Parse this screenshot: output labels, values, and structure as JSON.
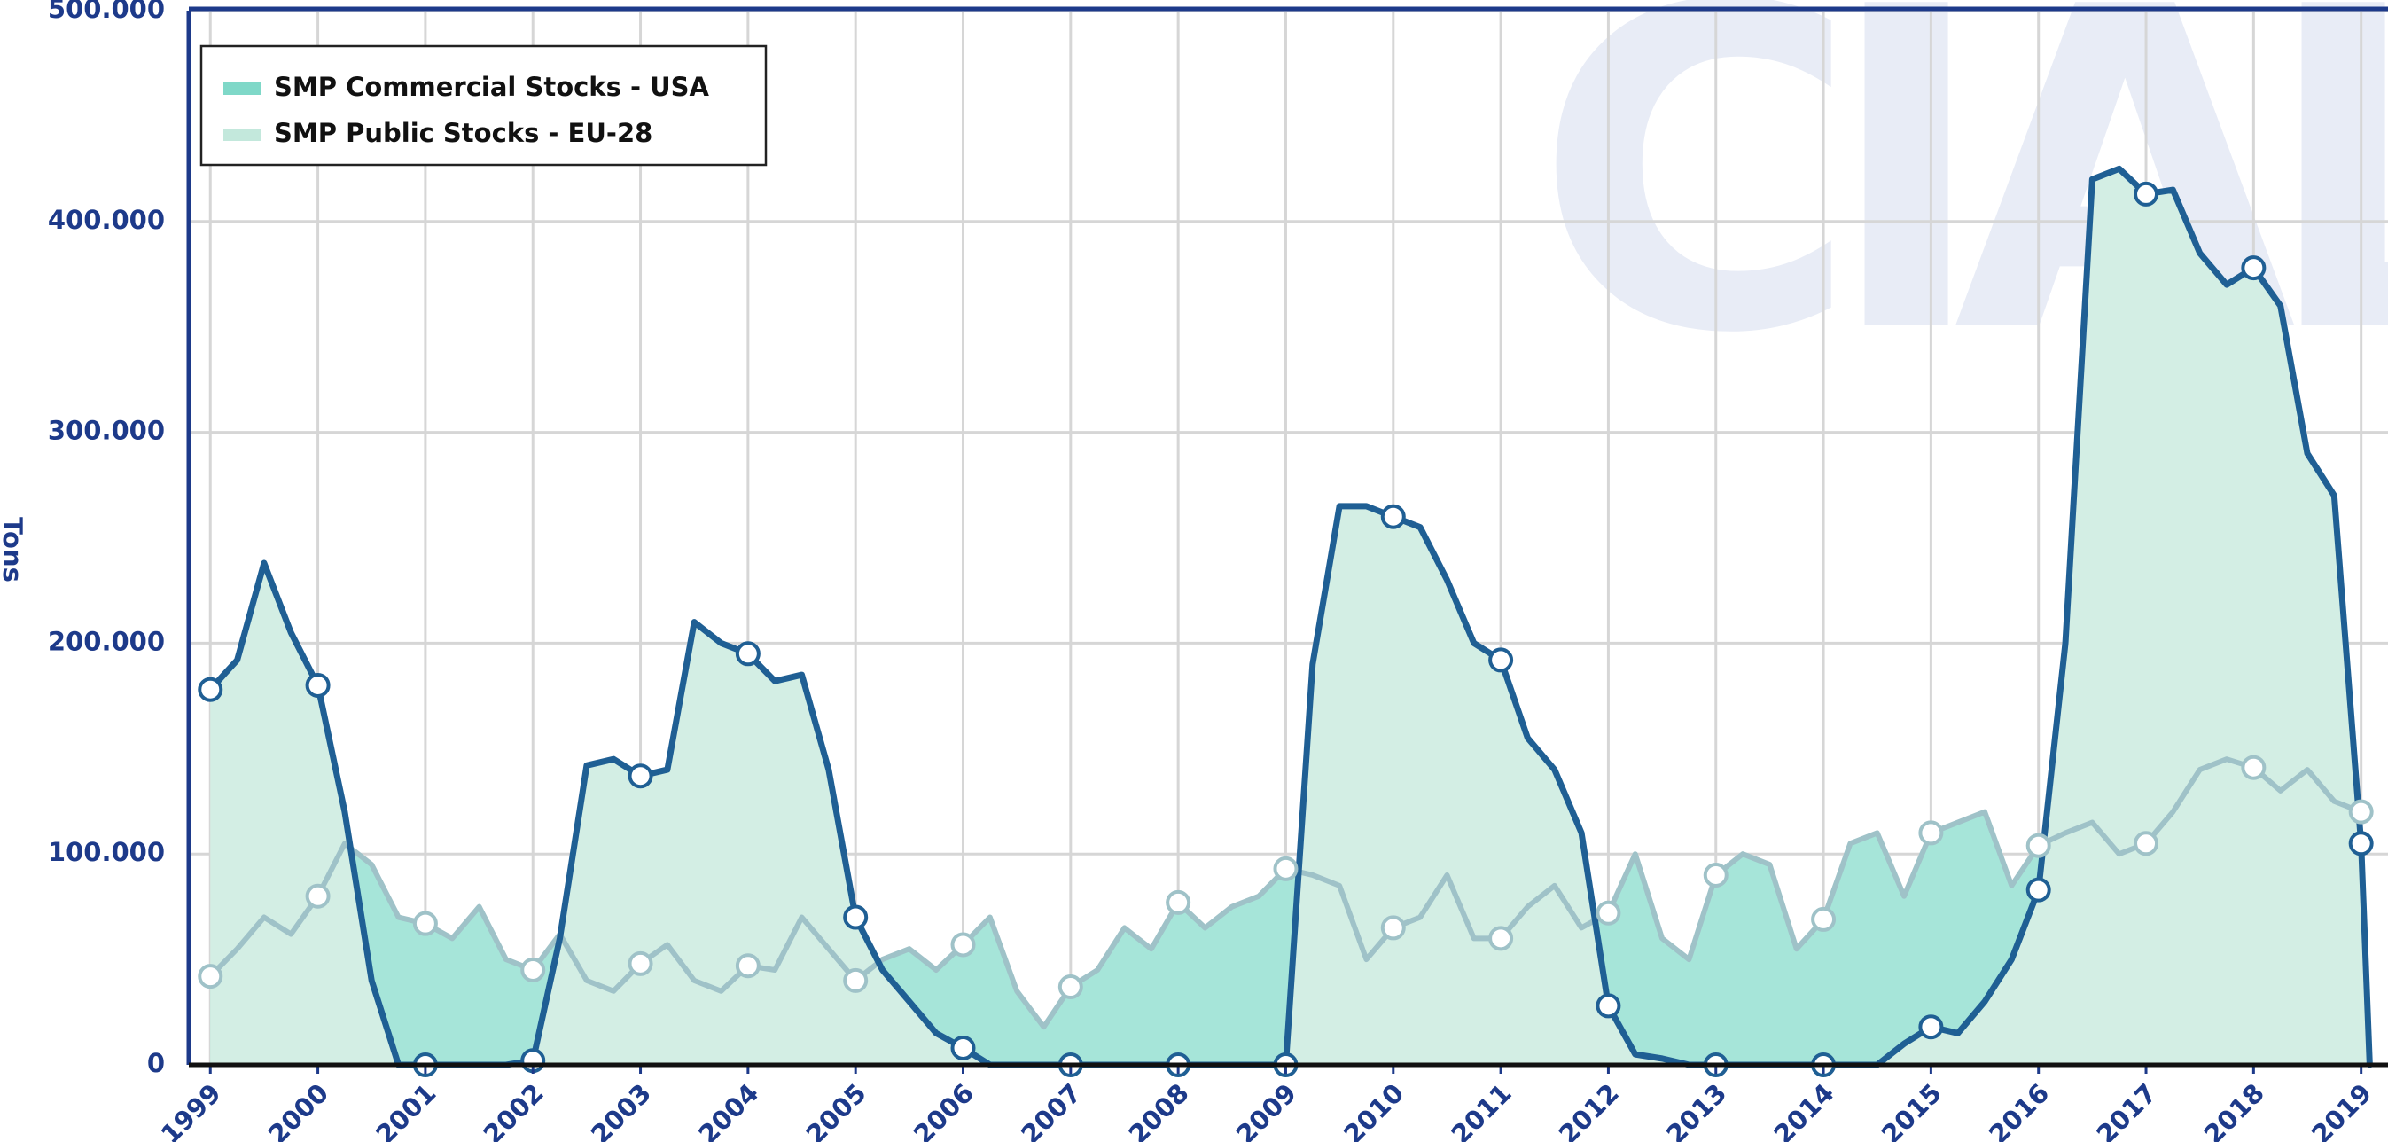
{
  "chart_data": {
    "type": "area",
    "watermark": "CIAL",
    "y_label": "Tons",
    "legend": "top-left",
    "grid": true,
    "xlim": [
      1998.8,
      2019.25
    ],
    "ylim": [
      0,
      500000
    ],
    "xticks": [
      1999,
      2000,
      2001,
      2002,
      2003,
      2004,
      2005,
      2006,
      2007,
      2008,
      2009,
      2010,
      2011,
      2012,
      2013,
      2014,
      2015,
      2016,
      2017,
      2018,
      2019
    ],
    "yticks": [
      {
        "value": 0,
        "label": "0"
      },
      {
        "value": 100000,
        "label": "100.000"
      },
      {
        "value": 200000,
        "label": "200.000"
      },
      {
        "value": 300000,
        "label": "300.000"
      },
      {
        "value": 400000,
        "label": "400.000"
      },
      {
        "value": 500000,
        "label": "500.000"
      }
    ],
    "series": [
      {
        "name": "SMP Commercial Stocks - USA",
        "color": "#7fd8c8",
        "fill": "#a6e5d9",
        "line_color": "#9fc2c8",
        "x": [
          1999,
          1999.25,
          1999.5,
          1999.75,
          2000,
          2000.25,
          2000.5,
          2000.75,
          2001,
          2001.25,
          2001.5,
          2001.75,
          2002,
          2002.25,
          2002.5,
          2002.75,
          2003,
          2003.25,
          2003.5,
          2003.75,
          2004,
          2004.25,
          2004.5,
          2004.75,
          2005,
          2005.25,
          2005.5,
          2005.75,
          2006,
          2006.25,
          2006.5,
          2006.75,
          2007,
          2007.25,
          2007.5,
          2007.75,
          2008,
          2008.25,
          2008.5,
          2008.75,
          2009,
          2009.25,
          2009.5,
          2009.75,
          2010,
          2010.25,
          2010.5,
          2010.75,
          2011,
          2011.25,
          2011.5,
          2011.75,
          2012,
          2012.25,
          2012.5,
          2012.75,
          2013,
          2013.25,
          2013.5,
          2013.75,
          2014,
          2014.25,
          2014.5,
          2014.75,
          2015,
          2015.25,
          2015.5,
          2015.75,
          2016,
          2016.25,
          2016.5,
          2016.75,
          2017,
          2017.25,
          2017.5,
          2017.75,
          2018,
          2018.25,
          2018.5,
          2018.75,
          2019
        ],
        "values": [
          42000,
          55000,
          70000,
          62000,
          80000,
          105000,
          95000,
          70000,
          67000,
          60000,
          75000,
          50000,
          45000,
          62000,
          40000,
          35000,
          48000,
          57000,
          40000,
          35000,
          47000,
          45000,
          70000,
          55000,
          40000,
          50000,
          55000,
          45000,
          57000,
          70000,
          35000,
          18000,
          37000,
          45000,
          65000,
          55000,
          77000,
          65000,
          75000,
          80000,
          93000,
          90000,
          85000,
          50000,
          65000,
          70000,
          90000,
          60000,
          60000,
          75000,
          85000,
          65000,
          72000,
          100000,
          60000,
          50000,
          90000,
          100000,
          95000,
          55000,
          69000,
          105000,
          110000,
          80000,
          110000,
          115000,
          120000,
          85000,
          104000,
          110000,
          115000,
          100000,
          105000,
          120000,
          140000,
          145000,
          141000,
          130000,
          140000,
          125000,
          120000
        ]
      },
      {
        "name": "SMP Public Stocks - EU-28",
        "color": "#c3e8dc",
        "fill": "#d3eee4",
        "line_color": "#1f5f94",
        "x": [
          1999,
          1999.25,
          1999.5,
          1999.75,
          2000,
          2000.25,
          2000.5,
          2000.75,
          2001,
          2001.25,
          2001.5,
          2001.75,
          2002,
          2002.25,
          2002.5,
          2002.75,
          2003,
          2003.25,
          2003.5,
          2003.75,
          2004,
          2004.25,
          2004.5,
          2004.75,
          2005,
          2005.25,
          2005.5,
          2005.75,
          2006,
          2006.25,
          2006.5,
          2006.75,
          2007,
          2007.25,
          2007.5,
          2007.75,
          2008,
          2008.25,
          2008.5,
          2008.75,
          2009,
          2009.25,
          2009.5,
          2009.75,
          2010,
          2010.25,
          2010.5,
          2010.75,
          2011,
          2011.25,
          2011.5,
          2011.75,
          2012,
          2012.25,
          2012.5,
          2012.75,
          2013,
          2013.25,
          2013.5,
          2013.75,
          2014,
          2014.25,
          2014.5,
          2014.75,
          2015,
          2015.25,
          2015.5,
          2015.75,
          2016,
          2016.25,
          2016.5,
          2016.75,
          2017,
          2017.25,
          2017.5,
          2017.75,
          2018,
          2018.25,
          2018.5,
          2018.75,
          2019,
          2019.08
        ],
        "values": [
          178000,
          192000,
          238000,
          205000,
          180000,
          120000,
          40000,
          0,
          0,
          0,
          0,
          0,
          2000,
          60000,
          142000,
          145000,
          137000,
          140000,
          210000,
          200000,
          195000,
          182000,
          185000,
          140000,
          70000,
          45000,
          30000,
          15000,
          8000,
          0,
          0,
          0,
          0,
          0,
          0,
          0,
          0,
          0,
          0,
          0,
          0,
          190000,
          265000,
          265000,
          260000,
          255000,
          230000,
          200000,
          192000,
          155000,
          140000,
          110000,
          28000,
          5000,
          3000,
          0,
          0,
          0,
          0,
          0,
          0,
          0,
          0,
          10000,
          18000,
          15000,
          30000,
          50000,
          83000,
          200000,
          420000,
          425000,
          413000,
          415000,
          385000,
          370000,
          378000,
          360000,
          290000,
          270000,
          105000,
          0
        ]
      }
    ]
  }
}
